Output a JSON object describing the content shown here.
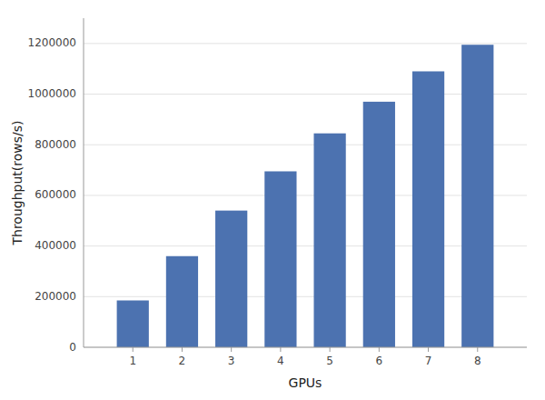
{
  "chart_data": {
    "type": "bar",
    "x": [
      1,
      2,
      3,
      4,
      5,
      6,
      7,
      8
    ],
    "values": [
      185000,
      360000,
      540000,
      695000,
      845000,
      970000,
      1090000,
      1195000
    ],
    "color": "#4c72b0",
    "xlabel": "GPUs",
    "ylabel": "Throughput(rows/s)",
    "xlim": [
      0,
      9
    ],
    "xticks": [
      1,
      2,
      3,
      4,
      5,
      6,
      7,
      8
    ],
    "ylim": [
      0,
      1300000
    ],
    "yticks": [
      0,
      200000,
      400000,
      600000,
      800000,
      1000000,
      1200000
    ],
    "grid": true
  }
}
